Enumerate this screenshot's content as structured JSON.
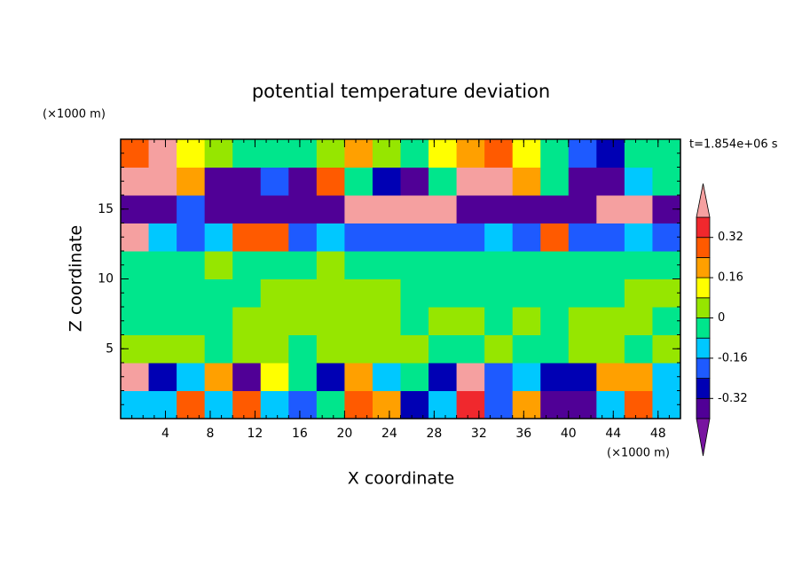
{
  "chart_data": {
    "type": "contour",
    "title": "potential temperature deviation",
    "y_unit_label": "(×1000 m)",
    "x_unit_label": "(×1000 m)",
    "time_label": "t=1.854e+06 s",
    "xlabel": "X coordinate",
    "ylabel": "Z coordinate",
    "xlim": [
      0,
      50
    ],
    "ylim": [
      0,
      20
    ],
    "xticks": [
      4,
      8,
      12,
      16,
      20,
      24,
      28,
      32,
      36,
      40,
      44,
      48
    ],
    "yticks": [
      5,
      10,
      15
    ],
    "levels": [
      -0.4,
      -0.32,
      -0.24,
      -0.16,
      -0.08,
      0,
      0.08,
      0.16,
      0.24,
      0.32,
      0.4
    ],
    "colors": [
      "#7814a0",
      "#500096",
      "#0000b4",
      "#1e5aff",
      "#00c8ff",
      "#00e68c",
      "#96e600",
      "#ffff00",
      "#ffa000",
      "#ff5a00",
      "#f0282d",
      "#f5a0a0"
    ],
    "colorbar_ticks": [
      -0.32,
      -0.16,
      0,
      0.16,
      0.32
    ],
    "field": {
      "x": [
        1.25,
        3.75,
        6.25,
        8.75,
        11.25,
        13.75,
        16.25,
        18.75,
        21.25,
        23.75,
        26.25,
        28.75,
        31.25,
        33.75,
        36.25,
        38.75,
        41.25,
        43.75,
        46.25,
        48.75
      ],
      "z": [
        1,
        3,
        5,
        7,
        9,
        11,
        13,
        15,
        17,
        19
      ],
      "values": [
        [
          -0.12,
          -0.12,
          0.3,
          -0.12,
          0.3,
          -0.12,
          -0.2,
          -0.04,
          0.3,
          0.2,
          -0.3,
          -0.12,
          0.35,
          -0.2,
          0.2,
          -0.38,
          -0.38,
          -0.12,
          0.3,
          -0.12
        ],
        [
          0.45,
          -0.3,
          -0.12,
          0.2,
          -0.38,
          0.1,
          -0.04,
          -0.3,
          0.2,
          -0.12,
          -0.04,
          -0.3,
          0.45,
          -0.2,
          -0.12,
          -0.3,
          -0.3,
          0.2,
          0.2,
          -0.12
        ],
        [
          0.03,
          0.03,
          0.03,
          -0.04,
          0.03,
          0.03,
          -0.04,
          0.03,
          0.03,
          0.03,
          0.03,
          -0.04,
          -0.04,
          0.03,
          -0.04,
          -0.04,
          0.03,
          0.03,
          -0.04,
          0.03
        ],
        [
          -0.04,
          -0.04,
          -0.04,
          -0.04,
          0.03,
          0.03,
          0.03,
          0.03,
          0.03,
          0.03,
          -0.04,
          0.03,
          0.03,
          -0.04,
          0.03,
          -0.04,
          0.03,
          0.03,
          0.03,
          -0.04
        ],
        [
          -0.04,
          -0.04,
          -0.04,
          -0.04,
          -0.04,
          0.03,
          0.03,
          0.03,
          0.03,
          0.03,
          -0.04,
          -0.04,
          -0.04,
          -0.04,
          -0.04,
          -0.04,
          -0.04,
          -0.04,
          0.03,
          0.03
        ],
        [
          -0.04,
          -0.04,
          -0.04,
          0.03,
          -0.04,
          -0.04,
          -0.04,
          0.03,
          -0.04,
          -0.04,
          -0.04,
          -0.04,
          -0.04,
          -0.04,
          -0.04,
          -0.04,
          -0.04,
          -0.04,
          -0.04,
          -0.04
        ],
        [
          0.45,
          -0.12,
          -0.2,
          -0.12,
          0.3,
          0.3,
          -0.2,
          -0.12,
          -0.2,
          -0.2,
          -0.2,
          -0.2,
          -0.2,
          -0.12,
          -0.2,
          0.3,
          -0.2,
          -0.2,
          -0.12,
          -0.2
        ],
        [
          -0.38,
          -0.38,
          -0.2,
          -0.38,
          -0.35,
          -0.38,
          -0.38,
          -0.38,
          0.45,
          0.45,
          0.45,
          0.45,
          -0.38,
          -0.38,
          -0.38,
          -0.35,
          -0.38,
          0.45,
          0.45,
          -0.38
        ],
        [
          0.45,
          0.45,
          0.2,
          -0.35,
          -0.35,
          -0.2,
          -0.35,
          0.3,
          -0.04,
          -0.3,
          -0.35,
          -0.04,
          0.45,
          0.45,
          0.2,
          -0.04,
          -0.38,
          -0.38,
          -0.1,
          -0.04
        ],
        [
          0.3,
          0.45,
          0.1,
          0.05,
          -0.04,
          -0.04,
          -0.04,
          0.03,
          0.2,
          0.03,
          -0.04,
          0.1,
          0.2,
          0.3,
          0.1,
          -0.04,
          -0.2,
          -0.3,
          -0.04,
          -0.04
        ]
      ]
    }
  }
}
